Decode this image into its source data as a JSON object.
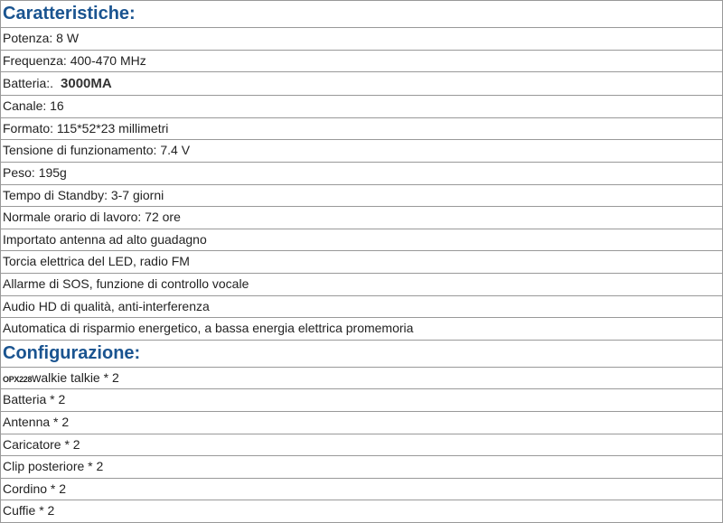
{
  "sections": {
    "caratteristiche": {
      "title": "Caratteristiche:",
      "rows": [
        "Potenza: 8 W",
        "Frequenza: 400-470 MHz",
        "Canale: 16",
        "Formato: 115*52*23 millimetri",
        "Tensione di funzionamento: 7.4 V",
        "Peso: 195g",
        "Tempo di Standby: 3-7 giorni",
        "Normale orario di lavoro: 72 ore",
        "Importato antenna ad alto guadagno",
        "Torcia elettrica del LED, radio FM",
        "Allarme di SOS, funzione di controllo vocale",
        "Audio HD di qualità, anti-interferenza",
        "Automatica di risparmio energetico, a bassa energia elettrica promemoria"
      ],
      "battery_label": "Batteria:.",
      "battery_value": "3000MA"
    },
    "configurazione": {
      "title": "Configurazione:",
      "model_prefix": "OPX228",
      "model_suffix": "walkie talkie * 2",
      "rows": [
        "Batteria * 2",
        "Antenna * 2",
        "Caricatore * 2",
        "Clip posteriore * 2",
        "Cordino * 2",
        "Cuffie * 2"
      ]
    }
  },
  "styling": {
    "header_color": "#1a5490",
    "header_fontsize": 20,
    "row_fontsize": 14,
    "border_color": "#999",
    "text_color": "#222",
    "background": "#ffffff",
    "font_family": "Arial"
  }
}
